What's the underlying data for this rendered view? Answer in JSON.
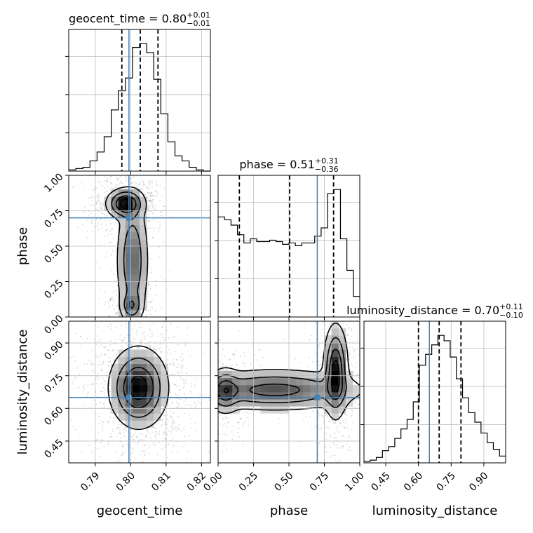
{
  "chart_data": {
    "type": "corner",
    "colors": {
      "truth": "#4682b4",
      "ink": "#000000",
      "grid": "#bdbdbd",
      "scatter": "#8c8c8c"
    },
    "parameters": [
      {
        "key": "geocent_time",
        "axis_label": "geocent_time",
        "title_name": "geocent_time",
        "median": "0.80",
        "upper": "+0.01",
        "lower": "−0.01",
        "range": [
          0.7825,
          0.8225
        ],
        "ticks": [
          0.79,
          0.8,
          0.81,
          0.82
        ],
        "tick_labels": [
          "0.79",
          "0.80",
          "0.81",
          "0.82"
        ],
        "truth": 0.7995,
        "quantiles": [
          0.7975,
          0.8027,
          0.8077
        ],
        "hist_edges_range": [
          0.7825,
          0.8225
        ],
        "hist": [
          1,
          2,
          3,
          8,
          15,
          27,
          48,
          63,
          73,
          97,
          100,
          93,
          72,
          45,
          23,
          12,
          8,
          3,
          1,
          0
        ]
      },
      {
        "key": "phase",
        "axis_label": "phase",
        "title_name": "phase",
        "median": "0.51",
        "upper": "+0.31",
        "lower": "−0.36",
        "range": [
          0.0,
          1.0
        ],
        "ticks": [
          0.0,
          0.25,
          0.5,
          0.75,
          1.0
        ],
        "tick_labels": [
          "0.00",
          "0.25",
          "0.50",
          "0.75",
          "1.00"
        ],
        "truth": 0.7,
        "quantiles": [
          0.15,
          0.505,
          0.815
        ],
        "hist_edges_range": [
          0.0,
          1.0
        ],
        "hist": [
          73,
          71,
          67,
          60,
          54,
          57,
          55,
          55,
          56,
          55,
          53,
          54,
          52,
          54,
          54,
          59,
          65,
          90,
          93,
          57,
          34,
          15
        ]
      },
      {
        "key": "luminosity_distance",
        "axis_label": "luminosity_distance",
        "title_name": "luminosity_distance",
        "median": "0.70",
        "upper": "+0.11",
        "lower": "−0.10",
        "range": [
          0.35,
          1.0
        ],
        "ticks": [
          0.45,
          0.6,
          0.75,
          0.9
        ],
        "tick_labels": [
          "0.45",
          "0.60",
          "0.75",
          "0.90"
        ],
        "truth": 0.65,
        "quantiles": [
          0.6,
          0.695,
          0.795
        ],
        "hist_edges_range": [
          0.35,
          1.0
        ],
        "hist": [
          1,
          2,
          4,
          9,
          12,
          18,
          25,
          32,
          45,
          72,
          80,
          87,
          94,
          90,
          78,
          62,
          48,
          37,
          30,
          22,
          15,
          10,
          5
        ]
      }
    ],
    "blobs": {
      "phase_vs_geocent_time": [
        {
          "x": 0.7985,
          "y": 0.8,
          "sx": 0.0025,
          "sy": 0.05,
          "w": 1.0
        },
        {
          "x": 0.8005,
          "y": 0.4,
          "sx": 0.0022,
          "sy": 0.22,
          "w": 0.55
        },
        {
          "x": 0.8002,
          "y": 0.08,
          "sx": 0.0015,
          "sy": 0.05,
          "w": 0.45
        }
      ],
      "luminosity_distance_vs_geocent_time": [
        {
          "x": 0.8022,
          "y": 0.695,
          "sx": 0.0038,
          "sy": 0.085,
          "w": 1.0
        }
      ],
      "luminosity_distance_vs_phase": [
        {
          "x": 0.83,
          "y": 0.77,
          "sx": 0.04,
          "sy": 0.1,
          "w": 1.0
        },
        {
          "x": 0.4,
          "y": 0.685,
          "sx": 0.3,
          "sy": 0.045,
          "w": 0.7
        },
        {
          "x": 0.05,
          "y": 0.68,
          "sx": 0.05,
          "sy": 0.05,
          "w": 0.55
        }
      ]
    }
  }
}
